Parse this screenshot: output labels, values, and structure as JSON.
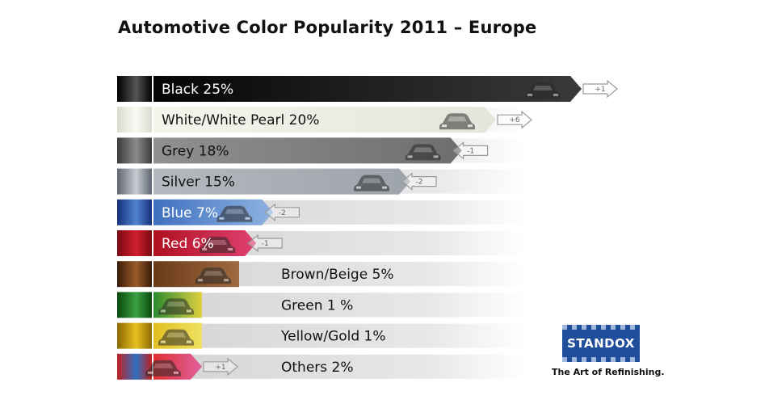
{
  "chart_data": {
    "type": "bar",
    "orientation": "horizontal",
    "title": "Automotive Color Popularity 2011 – Europe",
    "xlim": [
      0,
      25
    ],
    "grid": false,
    "legend": "none",
    "rows": [
      {
        "label": "Black 25%",
        "value": 25,
        "change": "+1",
        "swatch": [
          "#000000",
          "#555555"
        ],
        "bar": [
          "#050505",
          "#3a3a3a"
        ],
        "text_color": "#ffffff"
      },
      {
        "label": "White/White Pearl 20%",
        "value": 20,
        "change": "+6",
        "swatch": [
          "#d9dccf",
          "#fafaf4"
        ],
        "bar": [
          "#f4f5ec",
          "#e4e6dc"
        ],
        "text_color": "#111111"
      },
      {
        "label": "Grey 18%",
        "value": 18,
        "change": "-1",
        "swatch": [
          "#3b3b3b",
          "#8b8b8b"
        ],
        "bar": [
          "#909090",
          "#6e6e6e"
        ],
        "text_color": "#111111"
      },
      {
        "label": "Silver 15%",
        "value": 15,
        "change": "-2",
        "swatch": [
          "#5f6670",
          "#c7ccd2"
        ],
        "bar": [
          "#b4b9bf",
          "#9ea4ab"
        ],
        "text_color": "#111111"
      },
      {
        "label": "Blue 7%",
        "value": 7,
        "change": "-2",
        "swatch": [
          "#16307a",
          "#4f83cf"
        ],
        "bar": [
          "#3f6fc0",
          "#8fb3e0"
        ],
        "text_color": "#ffffff"
      },
      {
        "label": "Red 6%",
        "value": 6,
        "change": "-1",
        "swatch": [
          "#7a0a12",
          "#d01e2c"
        ],
        "bar": [
          "#b01020",
          "#e04070"
        ],
        "text_color": "#ffffff"
      },
      {
        "label": "Brown/Beige 5%",
        "value": 5,
        "change": "",
        "swatch": [
          "#3a1c08",
          "#9a5a2a"
        ],
        "bar": [
          "#6a3a18",
          "#a06a40"
        ],
        "text_color": "#111111"
      },
      {
        "label": "Green 1 %",
        "value": 1,
        "change": "",
        "swatch": [
          "#0a4a10",
          "#3aa040"
        ],
        "bar": [
          "#2a8a30",
          "#e0d040"
        ],
        "text_color": "#111111"
      },
      {
        "label": "Yellow/Gold 1%",
        "value": 1,
        "change": "",
        "swatch": [
          "#8a6a00",
          "#e8c020"
        ],
        "bar": [
          "#e0c020",
          "#f0e060"
        ],
        "text_color": "#111111"
      },
      {
        "label": "Others 2%",
        "value": 2,
        "change": "+1",
        "swatch": [
          "#c02020",
          "#3070c0"
        ],
        "bar": [
          "#e03030",
          "#e060a0"
        ],
        "text_color": "#111111"
      }
    ]
  },
  "branding": {
    "logo_text": "STANDOX",
    "tagline": "The Art of Refinishing.",
    "logo_color": "#1f4e9b"
  }
}
